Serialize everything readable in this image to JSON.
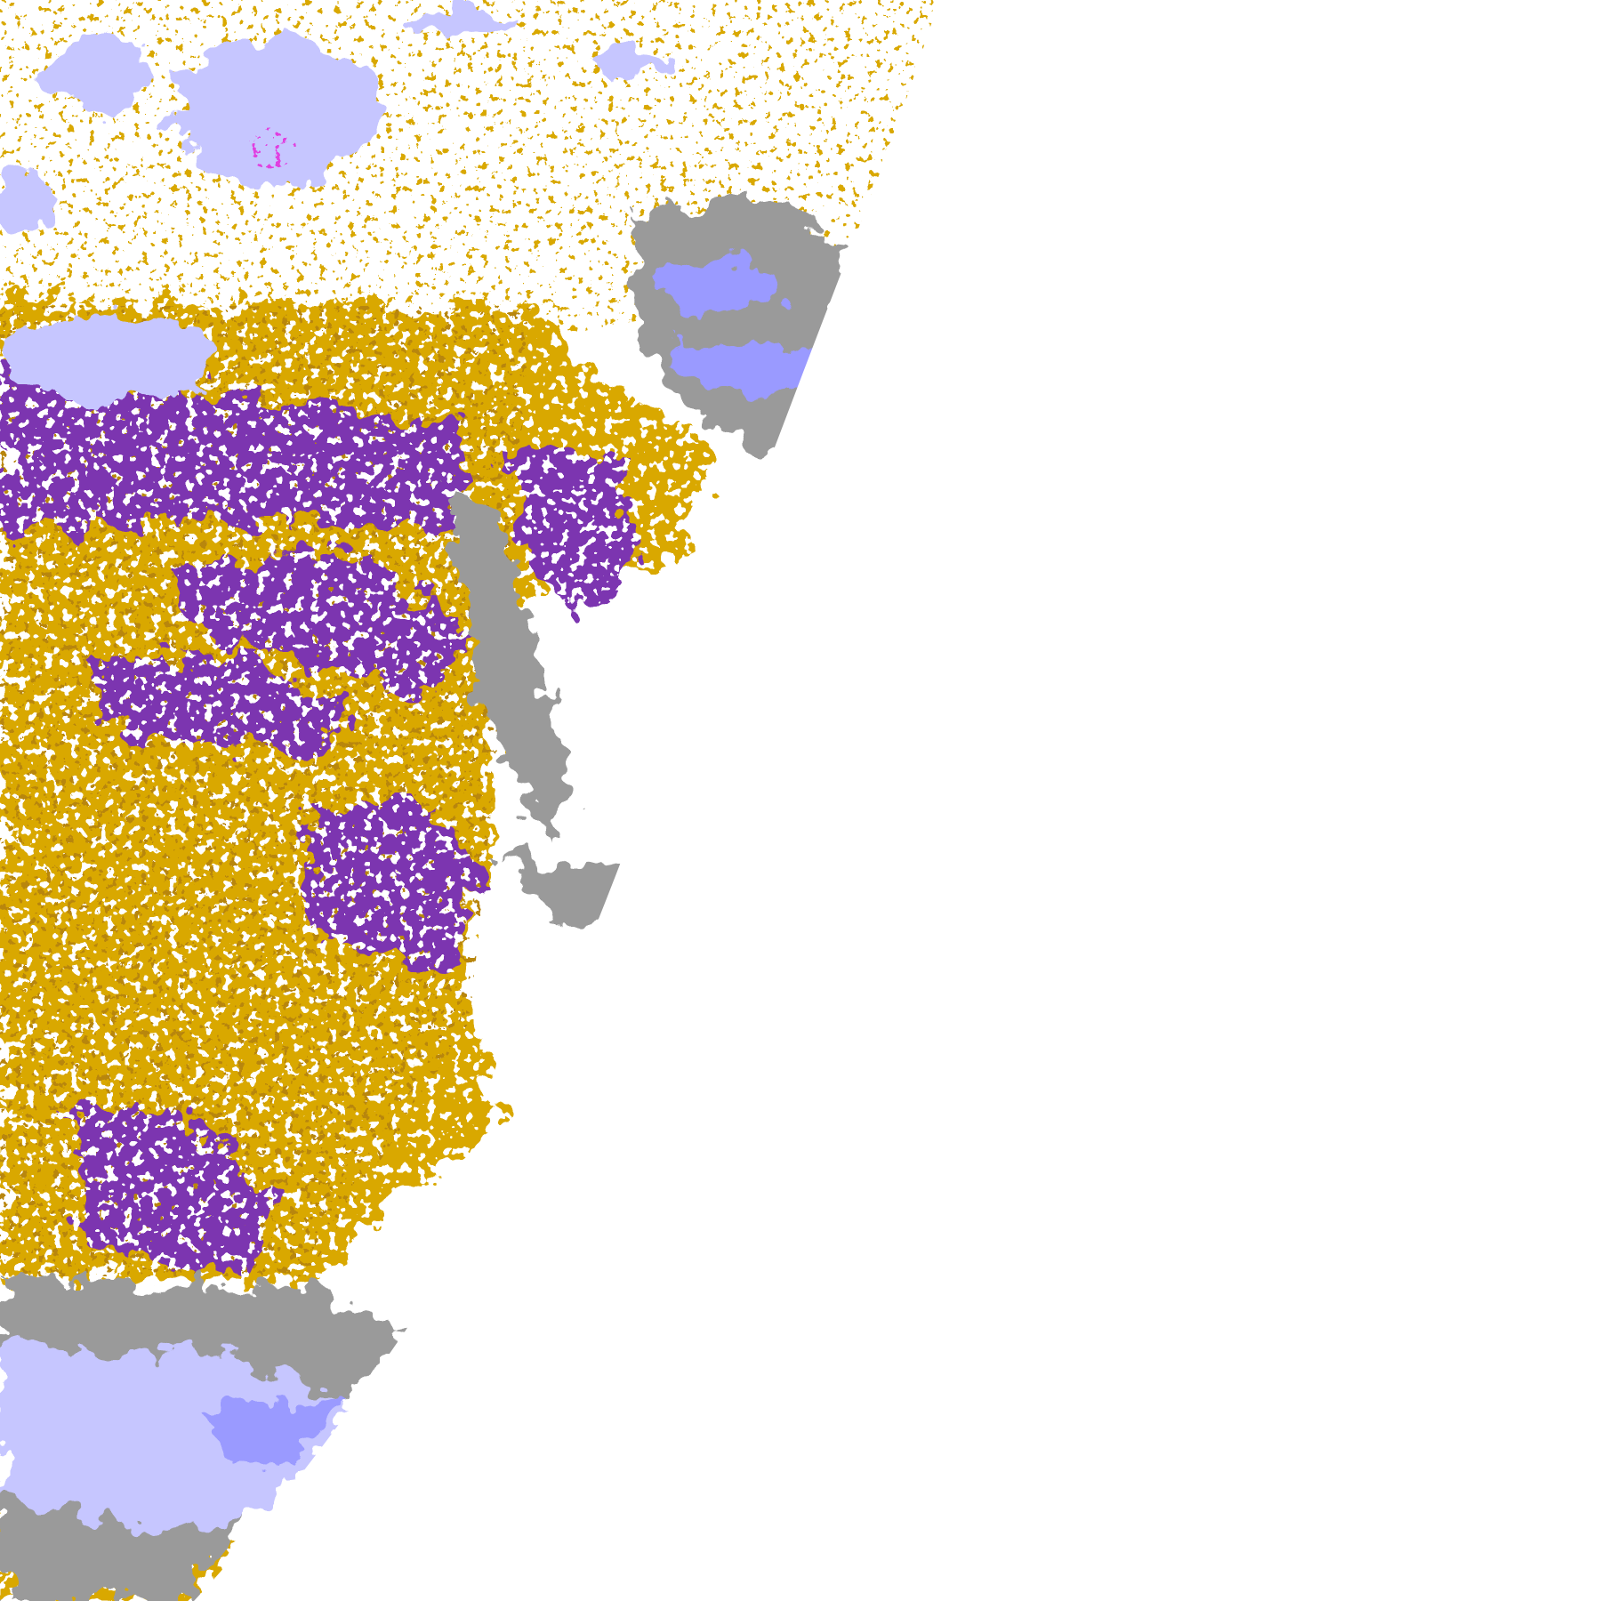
{
  "image": {
    "kind": "satellite cloud-type classification map",
    "background": "#ffffff",
    "colors": {
      "gold": "#d9a800",
      "gold_dark": "#b8860b",
      "purple": "#7b35b0",
      "grey": "#9a9a9a",
      "lavender": "#c6c6ff",
      "periwinkle": "#9a9aff",
      "magenta": "#e040e0"
    }
  }
}
